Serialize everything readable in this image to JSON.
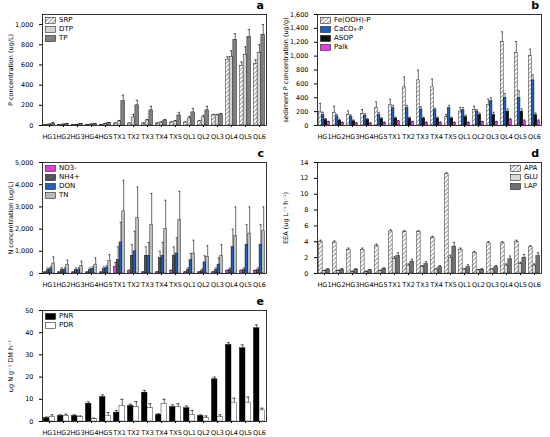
{
  "chart_data": [
    {
      "type": "bar",
      "panel_label": "a",
      "y_label": "P concentration (ug/L)",
      "legend": "top-left",
      "categories": [
        "HG1",
        "HG2",
        "HG3",
        "HG4",
        "HG5",
        "TX1",
        "TX2",
        "TX3",
        "TX4",
        "TX5",
        "QL1",
        "QL2",
        "QL3",
        "QL4",
        "QL5",
        "QL6"
      ],
      "ylim": [
        0,
        1100
      ],
      "yticks": [
        0,
        200,
        400,
        600,
        800,
        1000
      ],
      "series": [
        {
          "name": "SRP",
          "color": "#ffffff",
          "line_style": "hatched",
          "values": [
            5,
            5,
            5,
            5,
            5,
            20,
            20,
            20,
            20,
            30,
            30,
            40,
            100,
            650,
            590,
            610
          ],
          "errors": [
            2,
            2,
            2,
            2,
            2,
            5,
            5,
            5,
            5,
            5,
            5,
            10,
            10,
            30,
            40,
            40
          ]
        },
        {
          "name": "DTP",
          "color": "#d3d3d3",
          "values": [
            10,
            10,
            8,
            10,
            15,
            40,
            80,
            50,
            30,
            40,
            70,
            80,
            100,
            680,
            700,
            720
          ],
          "errors": [
            3,
            3,
            3,
            3,
            3,
            10,
            30,
            10,
            5,
            10,
            20,
            20,
            10,
            60,
            80,
            80
          ]
        },
        {
          "name": "TP",
          "color": "#808080",
          "values": [
            20,
            15,
            15,
            15,
            25,
            240,
            200,
            150,
            50,
            100,
            130,
            150,
            110,
            850,
            880,
            900
          ],
          "errors": [
            10,
            5,
            5,
            5,
            5,
            60,
            50,
            40,
            10,
            30,
            40,
            40,
            10,
            60,
            70,
            100
          ]
        }
      ]
    },
    {
      "type": "bar",
      "panel_label": "b",
      "y_label": "sediment P concentration (ug/g)",
      "legend": "top-left",
      "categories": [
        "HG1",
        "HG2",
        "HG3",
        "HG4",
        "HG5",
        "TX1",
        "TX2",
        "TX3",
        "TX4",
        "TX5",
        "QL1",
        "QL2",
        "QL3",
        "QL4",
        "QL5",
        "QL6"
      ],
      "ylim": [
        0,
        1600
      ],
      "yticks": [
        0,
        200,
        400,
        600,
        800,
        1000,
        1200,
        1400,
        1600
      ],
      "series": [
        {
          "name": "Fe(OOH)-P",
          "color": "#ffffff",
          "line_style": "hatched",
          "values": [
            200,
            180,
            150,
            170,
            250,
            300,
            550,
            650,
            550,
            120,
            200,
            220,
            300,
            1200,
            1050,
            1000
          ],
          "errors": [
            120,
            100,
            60,
            60,
            90,
            80,
            150,
            150,
            120,
            40,
            60,
            60,
            80,
            150,
            160,
            100
          ]
        },
        {
          "name": "CaCO₃-P",
          "color": "#1f5fbf",
          "values": [
            150,
            130,
            120,
            140,
            150,
            250,
            250,
            230,
            220,
            250,
            220,
            200,
            350,
            400,
            400,
            650
          ],
          "errors": [
            40,
            30,
            30,
            30,
            40,
            40,
            40,
            40,
            30,
            40,
            40,
            30,
            50,
            60,
            100,
            80
          ]
        },
        {
          "name": "ASOP",
          "color": "#111111",
          "values": [
            80,
            70,
            60,
            80,
            90,
            100,
            100,
            100,
            100,
            100,
            120,
            150,
            150,
            200,
            200,
            150
          ],
          "errors": [
            20,
            20,
            20,
            20,
            20,
            20,
            20,
            20,
            20,
            20,
            30,
            30,
            40,
            40,
            40,
            30
          ]
        },
        {
          "name": "Palk",
          "color": "#e040e0",
          "values": [
            50,
            40,
            30,
            30,
            40,
            60,
            50,
            40,
            40,
            40,
            40,
            50,
            50,
            80,
            60,
            60
          ],
          "errors": [
            10,
            10,
            10,
            10,
            10,
            10,
            10,
            10,
            10,
            10,
            10,
            10,
            10,
            20,
            20,
            20
          ]
        }
      ]
    },
    {
      "type": "bar",
      "panel_label": "c",
      "y_label": "N concentration (ug/L)",
      "legend": "top-left",
      "categories": [
        "HG1",
        "HG2",
        "HG3",
        "HG4",
        "HG5",
        "TX1",
        "TX2",
        "TX3",
        "TX4",
        "TX5",
        "QL1",
        "QL2",
        "QL3",
        "QL4",
        "QL5",
        "QL6"
      ],
      "ylim": [
        0,
        5000
      ],
      "yticks": [
        0,
        1000,
        2000,
        3000,
        4000,
        5000
      ],
      "series": [
        {
          "name": "NO3-",
          "color": "#e040e0",
          "values": [
            50,
            50,
            50,
            50,
            50,
            300,
            100,
            50,
            50,
            100,
            50,
            50,
            50,
            100,
            100,
            100
          ],
          "errors": [
            20,
            20,
            20,
            20,
            20,
            200,
            50,
            30,
            30,
            50,
            30,
            30,
            30,
            50,
            50,
            50
          ]
        },
        {
          "name": "NH4+",
          "color": "#555555",
          "values": [
            150,
            150,
            150,
            150,
            200,
            600,
            800,
            800,
            700,
            800,
            150,
            100,
            150,
            150,
            150,
            150
          ],
          "errors": [
            100,
            100,
            100,
            100,
            100,
            600,
            500,
            400,
            300,
            400,
            100,
            100,
            100,
            100,
            100,
            100
          ]
        },
        {
          "name": "DON",
          "color": "#1f5fbf",
          "values": [
            200,
            150,
            150,
            200,
            250,
            1400,
            1000,
            800,
            800,
            900,
            600,
            500,
            400,
            1200,
            1300,
            1300
          ],
          "errors": [
            100,
            100,
            100,
            100,
            100,
            900,
            900,
            600,
            600,
            700,
            300,
            300,
            300,
            800,
            900,
            900
          ]
        },
        {
          "name": "TN",
          "color": "#bbbbbb",
          "values": [
            450,
            400,
            350,
            400,
            550,
            2800,
            2500,
            2200,
            2000,
            2400,
            900,
            750,
            800,
            1700,
            1800,
            1900
          ],
          "errors": [
            300,
            200,
            200,
            300,
            300,
            1400,
            1400,
            1400,
            1300,
            1300,
            600,
            500,
            500,
            1300,
            1200,
            1100
          ]
        }
      ]
    },
    {
      "type": "bar",
      "panel_label": "d",
      "y_label": "EEA (ug L⁻¹ h⁻¹)",
      "legend": "top-right",
      "categories": [
        "HG1",
        "HG2",
        "HG3",
        "HG4",
        "HG5",
        "TX1",
        "TX2",
        "TX3",
        "TX4",
        "TX5",
        "QL1",
        "QL2",
        "QL3",
        "QL4",
        "QL5",
        "QL6"
      ],
      "ylim": [
        0,
        14
      ],
      "yticks": [
        0,
        2,
        4,
        6,
        8,
        10,
        12,
        14
      ],
      "series": [
        {
          "name": "APA",
          "color": "#ffffff",
          "line_style": "hatched",
          "values": [
            4.0,
            3.9,
            3.0,
            3.0,
            3.5,
            5.3,
            5.2,
            5.2,
            4.5,
            12.5,
            3.0,
            2.6,
            3.8,
            3.8,
            4.0,
            3.3
          ],
          "errors": [
            0.2,
            0.2,
            0.2,
            0.2,
            0.2,
            0.2,
            0.2,
            0.2,
            0.2,
            0.2,
            0.2,
            0.2,
            0.2,
            0.2,
            0.2,
            0.2
          ]
        },
        {
          "name": "GLU",
          "color": "#d9d9d9",
          "values": [
            0.3,
            0.3,
            0.2,
            0.2,
            0.3,
            1.8,
            1.0,
            0.8,
            0.5,
            2.0,
            0.5,
            0.4,
            0.5,
            1.0,
            1.2,
            1.0
          ],
          "errors": [
            0.1,
            0.1,
            0.1,
            0.1,
            0.1,
            0.3,
            0.2,
            0.2,
            0.1,
            0.3,
            0.1,
            0.1,
            0.1,
            0.2,
            0.2,
            0.2
          ]
        },
        {
          "name": "LAP",
          "color": "#707070",
          "values": [
            0.5,
            0.5,
            0.5,
            0.4,
            0.6,
            2.2,
            1.5,
            1.2,
            0.8,
            3.4,
            0.8,
            0.5,
            0.8,
            1.8,
            2.0,
            2.2
          ],
          "errors": [
            0.1,
            0.1,
            0.1,
            0.1,
            0.1,
            0.4,
            0.3,
            0.3,
            0.2,
            0.5,
            0.3,
            0.1,
            0.2,
            0.4,
            0.4,
            0.4
          ]
        }
      ]
    },
    {
      "type": "bar",
      "panel_label": "e",
      "y_label": "ug N g⁻¹ DM h⁻¹",
      "legend": "top-left",
      "categories": [
        "HG1",
        "HG2",
        "HG3",
        "HG4",
        "HG5",
        "TX1",
        "TX2",
        "TX3",
        "TX4",
        "TX5",
        "QL1",
        "QL2",
        "QL3",
        "QL4",
        "QL5",
        "QL6"
      ],
      "ylim": [
        0,
        50
      ],
      "yticks": [
        0,
        10,
        20,
        30,
        40,
        50
      ],
      "series": [
        {
          "name": "PNR",
          "color": "#000000",
          "values": [
            1.5,
            2.5,
            2.5,
            8,
            11,
            4,
            7,
            13,
            3,
            6.5,
            6,
            2.5,
            19,
            34.5,
            33,
            42
          ],
          "errors": [
            0.5,
            0.5,
            0.5,
            0.8,
            1,
            1,
            0.8,
            1,
            0.5,
            1,
            1,
            0.5,
            1,
            1,
            1.5,
            1.5
          ]
        },
        {
          "name": "PDR",
          "color": "#ffffff",
          "values": [
            2,
            2.5,
            2,
            1,
            2.5,
            7,
            6.5,
            6,
            8,
            6.5,
            3,
            1.5,
            2,
            8.5,
            8.5,
            5
          ],
          "errors": [
            1,
            0.8,
            0.5,
            0.5,
            1.5,
            3,
            2.5,
            2,
            2,
            1.5,
            2,
            1,
            1,
            2,
            2.5,
            1
          ]
        }
      ]
    }
  ]
}
